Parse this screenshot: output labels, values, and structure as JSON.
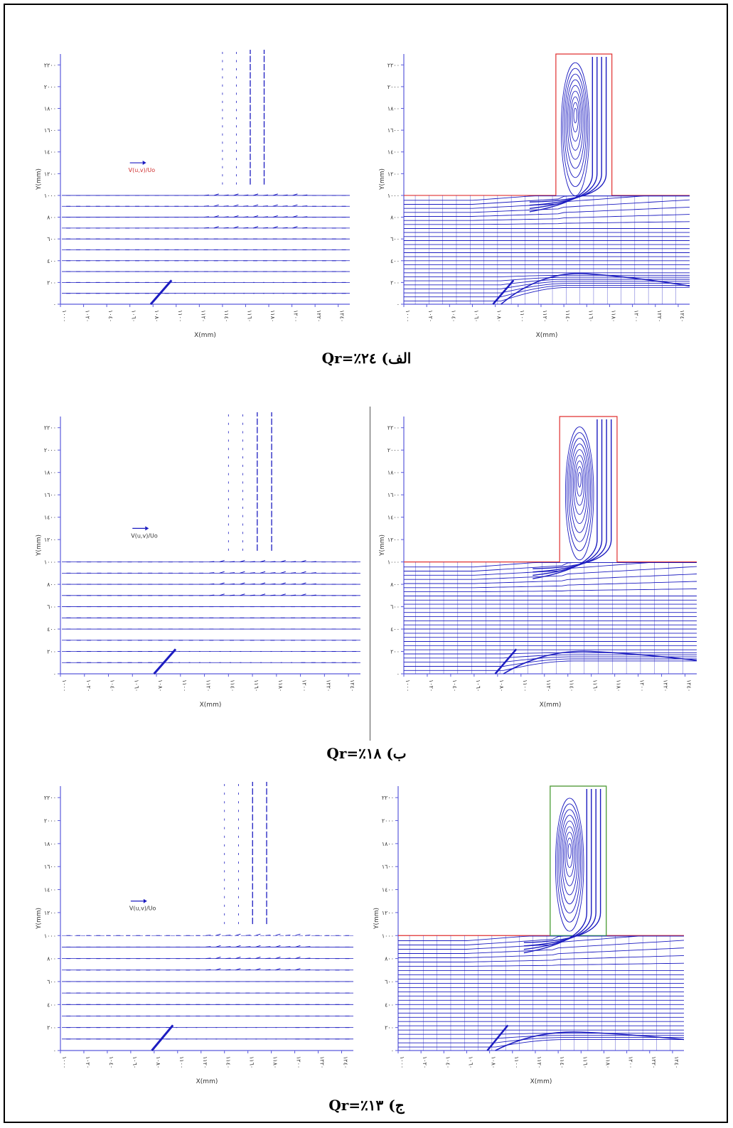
{
  "axis": {
    "x_label": "X(mm)",
    "y_label": "Y(mm)",
    "x_ticks": [
      "۱۰۰۰",
      "۱۰۲۰",
      "۱۰٤۰",
      "۱۰٦۰",
      "۱۰۸۰",
      "۱۱۰۰",
      "۱۱۲۰",
      "۱۱٤۰",
      "۱۱٦۰",
      "۱۱۸۰",
      "۱۲۰۰",
      "۱۲۲۰",
      "۱۲٤۰"
    ],
    "y_ticks": [
      "۰",
      "۲۰۰",
      "٤۰۰",
      "٦۰۰",
      "۸۰۰",
      "۱۰۰۰",
      "۱۲۰۰",
      "۱٤۰۰",
      "۱٦۰۰",
      "۱۸۰۰",
      "۲۰۰۰",
      "۲۲۰۰"
    ]
  },
  "legend_label": "V(u,v)/Uo",
  "colors": {
    "flow": "#1c1cc0",
    "boundary_red": "#e03030",
    "boundary_green": "#40b040",
    "axis": "#5a5adc"
  },
  "captions": [
    {
      "arabic": "الف)",
      "formula": "Qr=٪۲٤"
    },
    {
      "arabic": "ب)",
      "formula": "Qr=٪۱۸"
    },
    {
      "arabic": "ج)",
      "formula": "Qr=٪۱۳"
    }
  ]
}
